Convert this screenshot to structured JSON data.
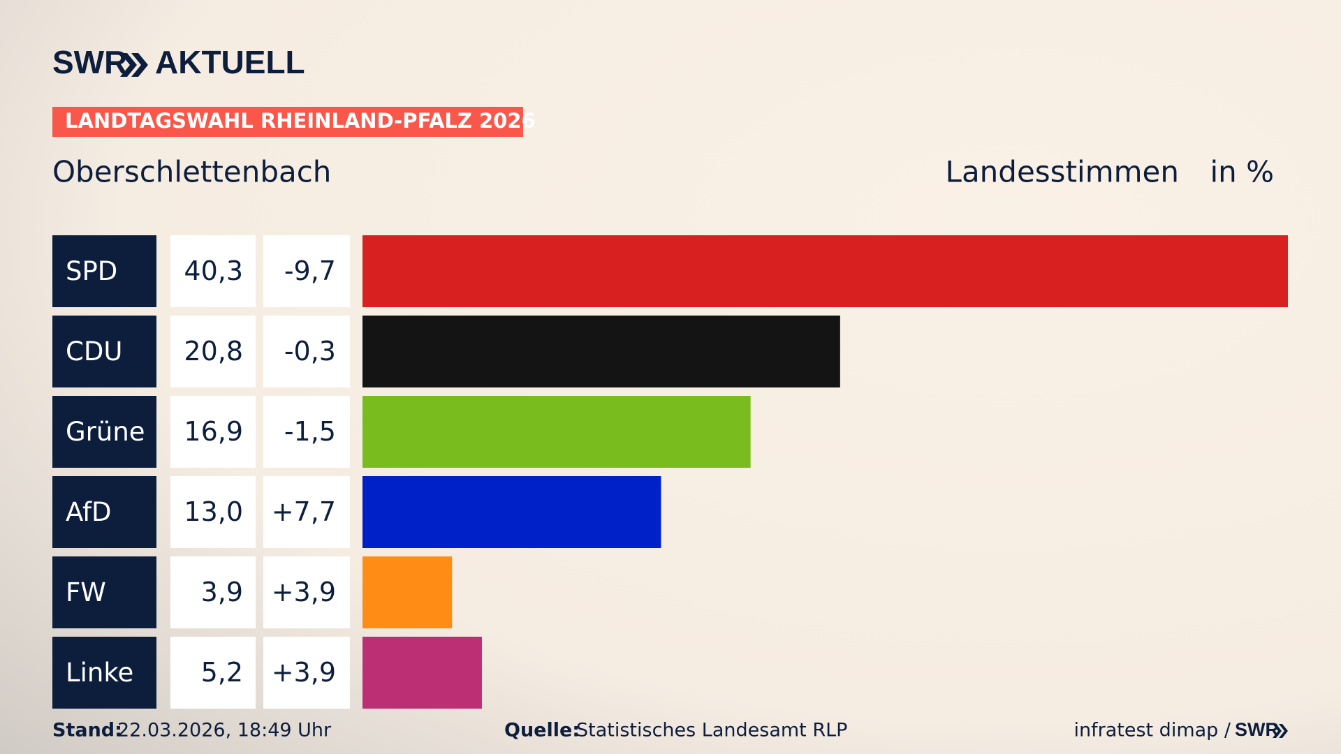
{
  "brand": "SWR",
  "brand_product": "AKTUELL",
  "chart_data": {
    "type": "bar",
    "label": "LANDTAGSWAHL RHEINLAND-PFALZ 2026",
    "title": "Oberschlettenbach",
    "value_title": "Landesstimmen",
    "unit": "in %",
    "categories": [
      "SPD",
      "CDU",
      "Grüne",
      "AfD",
      "FW",
      "Linke"
    ],
    "values": [
      40.3,
      20.8,
      16.9,
      13.0,
      3.9,
      5.2
    ],
    "value_labels": [
      "40,3",
      "20,8",
      "16,9",
      "13,0",
      "3,9",
      "5,2"
    ],
    "changes": [
      "-9,7",
      "-0,3",
      "-1,5",
      "+7,7",
      "+3,9",
      "+3,9"
    ],
    "colors": [
      "#d7201f",
      "#141414",
      "#78bd1d",
      "#0020c8",
      "#ff8c14",
      "#bd2f74"
    ],
    "xlim": [
      0,
      40.3
    ]
  },
  "footer": {
    "stand_label": "Stand:",
    "stand": "22.03.2026, 18:49 Uhr",
    "source_label": "Quelle:",
    "source": "Statistisches Landesamt RLP",
    "credit": "infratest dimap /",
    "credit_brand": "SWR"
  }
}
